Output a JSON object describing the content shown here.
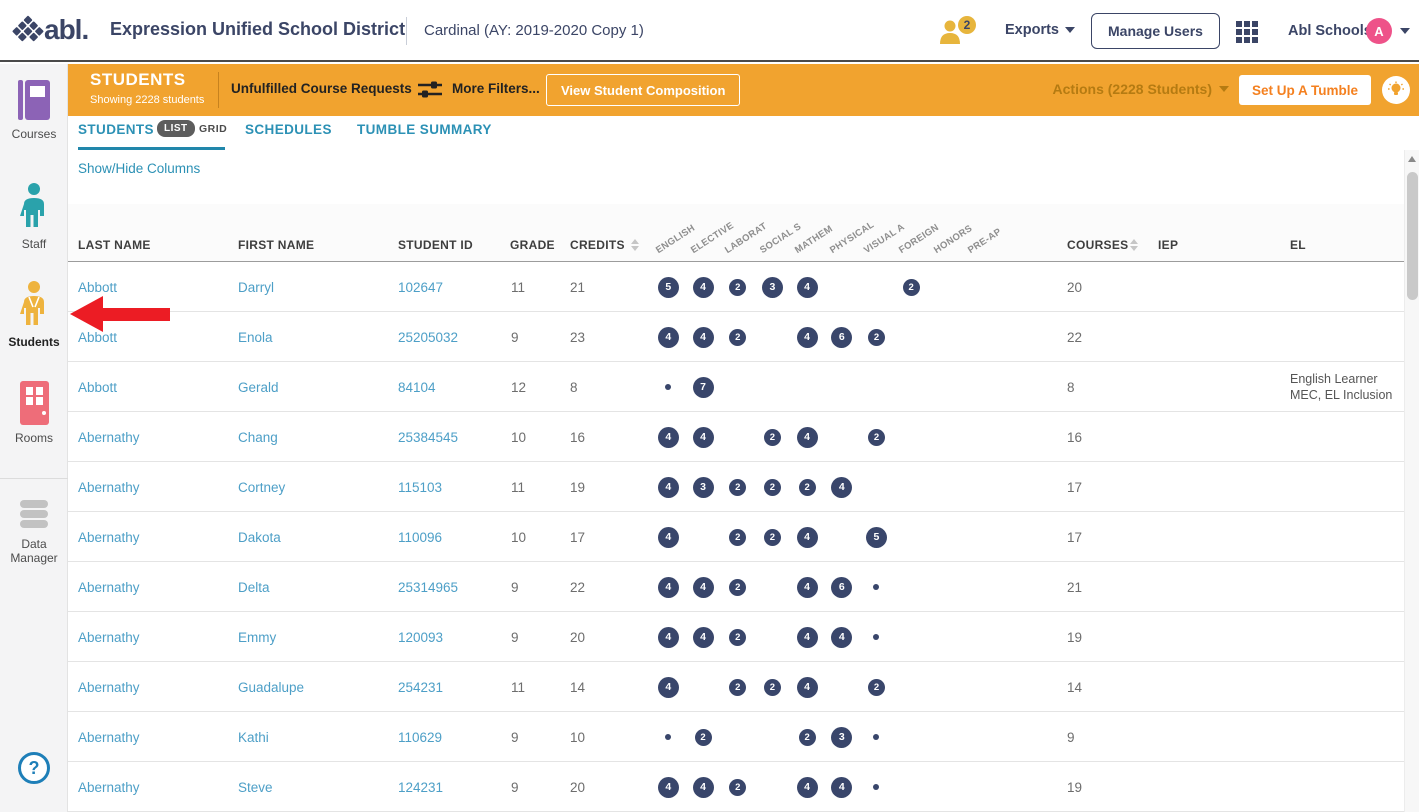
{
  "header": {
    "logo_text": "abl.",
    "district": "Expression Unified School District",
    "context": "Cardinal (AY: 2019-2020 Copy 1)",
    "users_badge_count": "2",
    "exports_label": "Exports",
    "manage_users_label": "Manage Users",
    "account_name": "Abl Schools",
    "avatar_letter": "A"
  },
  "sidebar": {
    "items": [
      {
        "label": "Courses",
        "icon": "book-icon",
        "color": "#8c63b6"
      },
      {
        "label": "Staff",
        "icon": "person-icon",
        "color": "#2aa2ab"
      },
      {
        "label": "Students",
        "icon": "student-icon",
        "color": "#eeb33e",
        "active": true
      },
      {
        "label": "Rooms",
        "icon": "door-icon",
        "color": "#ee6d79"
      },
      {
        "label": "Data Manager",
        "icon": "database-icon",
        "color": "#c2c2c2"
      }
    ],
    "help_label": "?"
  },
  "action_bar": {
    "title": "STUDENTS",
    "subtitle": "Showing 2228 students",
    "unfulfilled_label": "Unfulfilled Course Requests",
    "more_filters_label": "More Filters...",
    "view_composition_label": "View Student Composition",
    "actions_label": "Actions (2228 Students)",
    "set_up_tumble_label": "Set Up A Tumble"
  },
  "tabs": {
    "students_label": "STUDENTS",
    "list_label": "LIST",
    "grid_label": "GRID",
    "schedules_label": "SCHEDULES",
    "tumble_summary_label": "TUMBLE SUMMARY",
    "show_hide_label": "Show/Hide Columns"
  },
  "table": {
    "columns": [
      "LAST NAME",
      "FIRST NAME",
      "STUDENT ID",
      "GRADE",
      "CREDITS"
    ],
    "subject_columns": [
      "ENGLISH",
      "ELECTIVE",
      "LABORAT",
      "SOCIAL S",
      "MATHEM",
      "PHYSICAL",
      "VISUAL A",
      "FOREIGN",
      "HONORS",
      "PRE-AP"
    ],
    "courses_label": "COURSES",
    "iep_label": "IEP",
    "el_label": "EL",
    "rows": [
      {
        "last": "Abbott",
        "first": "Darryl",
        "id": "102647",
        "grade": "11",
        "credits": "21",
        "subjects": [
          5,
          4,
          2,
          3,
          4,
          null,
          null,
          2,
          null,
          null
        ],
        "courses": "20",
        "iep": "",
        "el": []
      },
      {
        "last": "Abbott",
        "first": "Enola",
        "id": "25205032",
        "grade": "9",
        "credits": "23",
        "subjects": [
          4,
          4,
          2,
          null,
          4,
          6,
          2,
          null,
          null,
          null
        ],
        "courses": "22",
        "iep": "",
        "el": []
      },
      {
        "last": "Abbott",
        "first": "Gerald",
        "id": "84104",
        "grade": "12",
        "credits": "8",
        "subjects": [
          0,
          7,
          null,
          null,
          null,
          null,
          null,
          null,
          null,
          null
        ],
        "courses": "8",
        "iep": "",
        "el": [
          "English Learner",
          "MEC, EL Inclusion"
        ]
      },
      {
        "last": "Abernathy",
        "first": "Chang",
        "id": "25384545",
        "grade": "10",
        "credits": "16",
        "subjects": [
          4,
          4,
          null,
          2,
          4,
          null,
          2,
          null,
          null,
          null
        ],
        "courses": "16",
        "iep": "",
        "el": []
      },
      {
        "last": "Abernathy",
        "first": "Cortney",
        "id": "115103",
        "grade": "11",
        "credits": "19",
        "subjects": [
          4,
          3,
          2,
          2,
          2,
          4,
          null,
          null,
          null,
          null
        ],
        "courses": "17",
        "iep": "",
        "el": []
      },
      {
        "last": "Abernathy",
        "first": "Dakota",
        "id": "110096",
        "grade": "10",
        "credits": "17",
        "subjects": [
          4,
          null,
          2,
          2,
          4,
          null,
          5,
          null,
          null,
          null
        ],
        "courses": "17",
        "iep": "",
        "el": []
      },
      {
        "last": "Abernathy",
        "first": "Delta",
        "id": "25314965",
        "grade": "9",
        "credits": "22",
        "subjects": [
          4,
          4,
          2,
          null,
          4,
          6,
          0,
          null,
          null,
          null
        ],
        "courses": "21",
        "iep": "",
        "el": []
      },
      {
        "last": "Abernathy",
        "first": "Emmy",
        "id": "120093",
        "grade": "9",
        "credits": "20",
        "subjects": [
          4,
          4,
          2,
          null,
          4,
          4,
          0,
          null,
          null,
          null
        ],
        "courses": "19",
        "iep": "",
        "el": []
      },
      {
        "last": "Abernathy",
        "first": "Guadalupe",
        "id": "254231",
        "grade": "11",
        "credits": "14",
        "subjects": [
          4,
          null,
          2,
          2,
          4,
          null,
          2,
          null,
          null,
          null
        ],
        "courses": "14",
        "iep": "",
        "el": []
      },
      {
        "last": "Abernathy",
        "first": "Kathi",
        "id": "110629",
        "grade": "9",
        "credits": "10",
        "subjects": [
          0,
          2,
          null,
          null,
          2,
          3,
          0,
          null,
          null,
          null
        ],
        "courses": "9",
        "iep": "",
        "el": []
      },
      {
        "last": "Abernathy",
        "first": "Steve",
        "id": "124231",
        "grade": "9",
        "credits": "20",
        "subjects": [
          4,
          4,
          2,
          null,
          4,
          4,
          0,
          null,
          null,
          null
        ],
        "courses": "19",
        "iep": "",
        "el": []
      }
    ]
  },
  "colors": {
    "accent_orange": "#f1a32f",
    "navy": "#3b4566",
    "badge_navy": "#39466b",
    "tab_teal": "#2c91b5",
    "link_blue": "#4d9fc7",
    "arrow_red": "#ec1c24",
    "avatar_pink": "#ee5289",
    "gold": "#e7b53c"
  }
}
